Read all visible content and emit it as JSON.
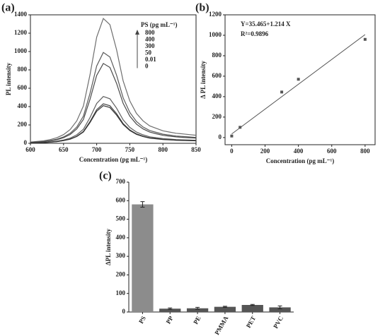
{
  "chart_data": [
    {
      "type": "line",
      "title": "(a)",
      "xlabel": "Concentration (pg mL⁻¹)",
      "ylabel": "PL intensity",
      "x": [
        600,
        610,
        620,
        630,
        640,
        650,
        660,
        670,
        680,
        690,
        700,
        710,
        720,
        730,
        740,
        750,
        760,
        770,
        780,
        790,
        800,
        810,
        820,
        830,
        840,
        850
      ],
      "series": [
        {
          "name": "800",
          "color": "#6e6e6e",
          "values": [
            14,
            20,
            27,
            41,
            61,
            95,
            150,
            245,
            408,
            748,
            1156,
            1360,
            1292,
            1020,
            680,
            462,
            326,
            245,
            190,
            163,
            136,
            122,
            109,
            102,
            95,
            88
          ]
        },
        {
          "name": "400",
          "color": "#5a5a5a",
          "values": [
            10,
            15,
            20,
            30,
            45,
            69,
            109,
            178,
            297,
            545,
            842,
            990,
            941,
            743,
            495,
            337,
            238,
            178,
            139,
            119,
            99,
            89,
            79,
            74,
            69,
            64
          ]
        },
        {
          "name": "300",
          "color": "#4a4a4a",
          "values": [
            9,
            13,
            17,
            26,
            39,
            61,
            96,
            157,
            261,
            479,
            740,
            870,
            827,
            653,
            435,
            296,
            209,
            157,
            122,
            104,
            87,
            78,
            70,
            65,
            61,
            57
          ]
        },
        {
          "name": "50",
          "color": "#5e5e5e",
          "values": [
            5,
            8,
            10,
            15,
            23,
            36,
            56,
            92,
            153,
            281,
            434,
            510,
            485,
            383,
            255,
            173,
            122,
            92,
            71,
            61,
            51,
            46,
            41,
            38,
            36,
            33
          ]
        },
        {
          "name": "0.01",
          "color": "#444444",
          "values": [
            4,
            6,
            9,
            13,
            19,
            30,
            47,
            77,
            129,
            237,
            366,
            430,
            409,
            323,
            215,
            146,
            103,
            77,
            60,
            52,
            43,
            39,
            34,
            32,
            30,
            28
          ]
        },
        {
          "name": "0",
          "color": "#333333",
          "values": [
            4,
            6,
            8,
            12,
            18,
            29,
            45,
            74,
            123,
            226,
            349,
            410,
            390,
            308,
            205,
            139,
            98,
            74,
            57,
            49,
            41,
            37,
            33,
            31,
            29,
            27
          ]
        }
      ],
      "legend_title": "PS (pg mL⁻¹)",
      "legend_position": "upper right",
      "xlim": [
        600,
        850
      ],
      "xticks": [
        600,
        650,
        700,
        750,
        800,
        850
      ],
      "ylim": [
        0,
        1400
      ],
      "yticks": [
        0,
        200,
        400,
        600,
        800,
        1000,
        1200,
        1400
      ]
    },
    {
      "type": "scatter",
      "title": "(b)",
      "xlabel": "Concentration (pg mL⁻¹)",
      "ylabel": "Δ PL intensity",
      "x": [
        0,
        50,
        300,
        400,
        800
      ],
      "values": [
        15,
        100,
        445,
        570,
        960
      ],
      "color": "#555555",
      "fit": {
        "intercept": 35.465,
        "slope": 1.214
      },
      "annotations": [
        "Y=35.465+1.214 X",
        "R²=0.9896"
      ],
      "xlim": [
        -40,
        860
      ],
      "xticks": [
        0,
        200,
        400,
        600,
        800
      ],
      "ylim": [
        -70,
        1200
      ],
      "yticks": [
        0,
        200,
        400,
        600,
        800,
        1000,
        1200
      ]
    },
    {
      "type": "bar",
      "title": "(c)",
      "ylabel": "ΔPL intensity",
      "categories": [
        "PS",
        "PP",
        "PE",
        "PMMA",
        "PET",
        "PVC"
      ],
      "values": [
        580,
        18,
        20,
        28,
        38,
        25
      ],
      "errors": [
        15,
        4,
        5,
        3,
        3,
        8
      ],
      "colors": [
        "#8c8c8c",
        "#555555",
        "#555555",
        "#555555",
        "#555555",
        "#555555"
      ],
      "ylim": [
        0,
        700
      ],
      "yticks": [
        0,
        100,
        200,
        300,
        400,
        500,
        600,
        700
      ]
    }
  ]
}
